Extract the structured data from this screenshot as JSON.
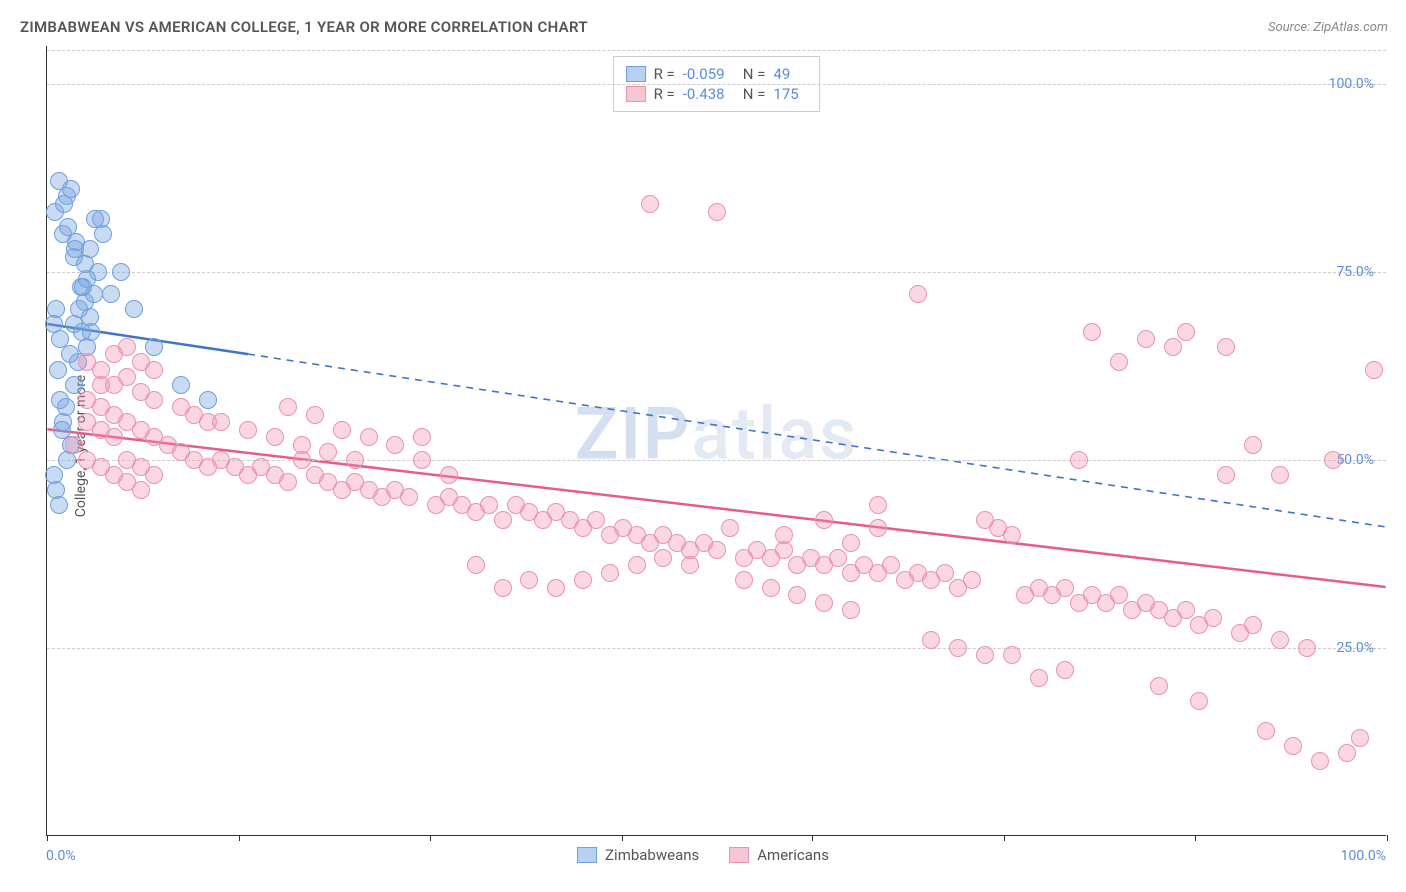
{
  "chart": {
    "type": "scatter",
    "title": "ZIMBABWEAN VS AMERICAN COLLEGE, 1 YEAR OR MORE CORRELATION CHART",
    "source": "Source: ZipAtlas.com",
    "ylabel": "College, 1 year or more",
    "watermark": "ZIPatlas",
    "background_color": "#ffffff",
    "grid_color": "#cccccc",
    "axis_color": "#333333",
    "tick_label_color": "#5b8dd6",
    "title_fontsize": 15,
    "label_fontsize": 14,
    "xlim": [
      0,
      100
    ],
    "ylim": [
      0,
      105
    ],
    "yticks": [
      25.0,
      50.0,
      75.0,
      100.0
    ],
    "ytick_labels": [
      "25.0%",
      "50.0%",
      "75.0%",
      "100.0%"
    ],
    "xtick_labels": [
      "0.0%",
      "100.0%"
    ],
    "xtick_marks": [
      0,
      14.3,
      28.6,
      42.9,
      57.1,
      71.4,
      85.7,
      100
    ],
    "marker_radius": 9,
    "marker_opacity": 0.45,
    "series": [
      {
        "name": "Zimbabweans",
        "color_fill": "rgba(120,165,225,0.40)",
        "color_stroke": "#6fa0de",
        "swatch_fill": "#b6d1f2",
        "swatch_border": "#6fa0de",
        "R": "-0.059",
        "N": "49",
        "trend": {
          "x1": 0,
          "y1": 68,
          "x2_solid": 15,
          "y2_solid": 64,
          "x2": 100,
          "y2": 41,
          "color": "#3f74c9",
          "width": 2.5
        },
        "points": [
          [
            0.5,
            68
          ],
          [
            0.7,
            70
          ],
          [
            1.0,
            66
          ],
          [
            1.2,
            80
          ],
          [
            1.5,
            85
          ],
          [
            1.8,
            86
          ],
          [
            2.0,
            77
          ],
          [
            2.2,
            79
          ],
          [
            2.5,
            73
          ],
          [
            2.8,
            71
          ],
          [
            3.0,
            65
          ],
          [
            3.2,
            69
          ],
          [
            3.5,
            72
          ],
          [
            3.8,
            75
          ],
          [
            4.0,
            82
          ],
          [
            0.8,
            62
          ],
          [
            1.0,
            58
          ],
          [
            1.2,
            55
          ],
          [
            1.5,
            50
          ],
          [
            1.8,
            52
          ],
          [
            2.0,
            60
          ],
          [
            2.3,
            63
          ],
          [
            2.6,
            67
          ],
          [
            3.0,
            74
          ],
          [
            0.5,
            48
          ],
          [
            0.7,
            46
          ],
          [
            0.9,
            44
          ],
          [
            1.1,
            54
          ],
          [
            1.4,
            57
          ],
          [
            1.7,
            64
          ],
          [
            2.0,
            68
          ],
          [
            2.4,
            70
          ],
          [
            2.8,
            76
          ],
          [
            3.2,
            78
          ],
          [
            3.6,
            82
          ],
          [
            4.2,
            80
          ],
          [
            4.8,
            72
          ],
          [
            5.5,
            75
          ],
          [
            6.5,
            70
          ],
          [
            8.0,
            65
          ],
          [
            10.0,
            60
          ],
          [
            12.0,
            58
          ],
          [
            0.6,
            83
          ],
          [
            0.9,
            87
          ],
          [
            1.3,
            84
          ],
          [
            1.6,
            81
          ],
          [
            2.1,
            78
          ],
          [
            2.7,
            73
          ],
          [
            3.3,
            67
          ]
        ]
      },
      {
        "name": "Americans",
        "color_fill": "rgba(240,140,170,0.35)",
        "color_stroke": "#ea93af",
        "swatch_fill": "#f7c6d5",
        "swatch_border": "#ea93af",
        "R": "-0.438",
        "N": "175",
        "trend": {
          "x1": 0,
          "y1": 54,
          "x2": 100,
          "y2": 33,
          "color": "#e85b8a",
          "width": 2.5
        },
        "points": [
          [
            3,
            63
          ],
          [
            4,
            62
          ],
          [
            5,
            60
          ],
          [
            6,
            61
          ],
          [
            7,
            59
          ],
          [
            8,
            58
          ],
          [
            5,
            64
          ],
          [
            6,
            65
          ],
          [
            7,
            63
          ],
          [
            8,
            62
          ],
          [
            4,
            57
          ],
          [
            5,
            56
          ],
          [
            6,
            55
          ],
          [
            7,
            54
          ],
          [
            8,
            53
          ],
          [
            9,
            52
          ],
          [
            10,
            51
          ],
          [
            11,
            50
          ],
          [
            12,
            49
          ],
          [
            13,
            50
          ],
          [
            14,
            49
          ],
          [
            15,
            48
          ],
          [
            16,
            49
          ],
          [
            17,
            48
          ],
          [
            18,
            47
          ],
          [
            19,
            50
          ],
          [
            20,
            48
          ],
          [
            21,
            47
          ],
          [
            22,
            46
          ],
          [
            23,
            47
          ],
          [
            24,
            46
          ],
          [
            25,
            45
          ],
          [
            26,
            46
          ],
          [
            27,
            45
          ],
          [
            28,
            53
          ],
          [
            29,
            44
          ],
          [
            30,
            45
          ],
          [
            31,
            44
          ],
          [
            32,
            43
          ],
          [
            33,
            44
          ],
          [
            34,
            42
          ],
          [
            35,
            44
          ],
          [
            36,
            43
          ],
          [
            37,
            42
          ],
          [
            38,
            43
          ],
          [
            39,
            42
          ],
          [
            40,
            41
          ],
          [
            41,
            42
          ],
          [
            42,
            40
          ],
          [
            43,
            41
          ],
          [
            44,
            40
          ],
          [
            45,
            39
          ],
          [
            46,
            40
          ],
          [
            47,
            39
          ],
          [
            48,
            38
          ],
          [
            49,
            39
          ],
          [
            50,
            38
          ],
          [
            51,
            41
          ],
          [
            52,
            37
          ],
          [
            53,
            38
          ],
          [
            54,
            37
          ],
          [
            55,
            38
          ],
          [
            56,
            36
          ],
          [
            57,
            37
          ],
          [
            58,
            36
          ],
          [
            59,
            37
          ],
          [
            60,
            35
          ],
          [
            61,
            36
          ],
          [
            62,
            35
          ],
          [
            63,
            36
          ],
          [
            64,
            34
          ],
          [
            65,
            35
          ],
          [
            66,
            34
          ],
          [
            67,
            35
          ],
          [
            68,
            33
          ],
          [
            69,
            34
          ],
          [
            70,
            42
          ],
          [
            71,
            41
          ],
          [
            72,
            40
          ],
          [
            73,
            32
          ],
          [
            74,
            33
          ],
          [
            75,
            32
          ],
          [
            76,
            33
          ],
          [
            77,
            31
          ],
          [
            78,
            32
          ],
          [
            79,
            31
          ],
          [
            80,
            32
          ],
          [
            81,
            30
          ],
          [
            82,
            31
          ],
          [
            83,
            30
          ],
          [
            84,
            29
          ],
          [
            85,
            30
          ],
          [
            86,
            28
          ],
          [
            87,
            29
          ],
          [
            88,
            48
          ],
          [
            89,
            27
          ],
          [
            90,
            28
          ],
          [
            91,
            14
          ],
          [
            92,
            26
          ],
          [
            93,
            12
          ],
          [
            94,
            25
          ],
          [
            95,
            10
          ],
          [
            96,
            50
          ],
          [
            97,
            11
          ],
          [
            98,
            13
          ],
          [
            99,
            62
          ],
          [
            50,
            83
          ],
          [
            65,
            72
          ],
          [
            78,
            67
          ],
          [
            85,
            67
          ],
          [
            82,
            66
          ],
          [
            84,
            65
          ],
          [
            80,
            63
          ],
          [
            77,
            50
          ],
          [
            72,
            24
          ],
          [
            74,
            21
          ],
          [
            83,
            20
          ],
          [
            86,
            18
          ],
          [
            62,
            44
          ],
          [
            13,
            55
          ],
          [
            15,
            54
          ],
          [
            17,
            53
          ],
          [
            19,
            52
          ],
          [
            21,
            51
          ],
          [
            23,
            50
          ],
          [
            10,
            57
          ],
          [
            11,
            56
          ],
          [
            12,
            55
          ],
          [
            18,
            57
          ],
          [
            20,
            56
          ],
          [
            22,
            54
          ],
          [
            24,
            53
          ],
          [
            26,
            52
          ],
          [
            28,
            50
          ],
          [
            30,
            48
          ],
          [
            32,
            36
          ],
          [
            34,
            33
          ],
          [
            36,
            34
          ],
          [
            38,
            33
          ],
          [
            40,
            34
          ],
          [
            42,
            35
          ],
          [
            44,
            36
          ],
          [
            46,
            37
          ],
          [
            48,
            36
          ],
          [
            52,
            34
          ],
          [
            54,
            33
          ],
          [
            56,
            32
          ],
          [
            58,
            31
          ],
          [
            60,
            30
          ],
          [
            66,
            26
          ],
          [
            68,
            25
          ],
          [
            70,
            24
          ],
          [
            76,
            22
          ],
          [
            3,
            55
          ],
          [
            4,
            54
          ],
          [
            5,
            53
          ],
          [
            6,
            50
          ],
          [
            7,
            49
          ],
          [
            8,
            48
          ],
          [
            6,
            47
          ],
          [
            7,
            46
          ],
          [
            4,
            49
          ],
          [
            5,
            48
          ],
          [
            3,
            58
          ],
          [
            4,
            60
          ],
          [
            2,
            52
          ],
          [
            3,
            50
          ],
          [
            45,
            84
          ],
          [
            55,
            40
          ],
          [
            58,
            42
          ],
          [
            60,
            39
          ],
          [
            62,
            41
          ],
          [
            88,
            65
          ],
          [
            90,
            52
          ],
          [
            92,
            48
          ]
        ]
      }
    ]
  }
}
